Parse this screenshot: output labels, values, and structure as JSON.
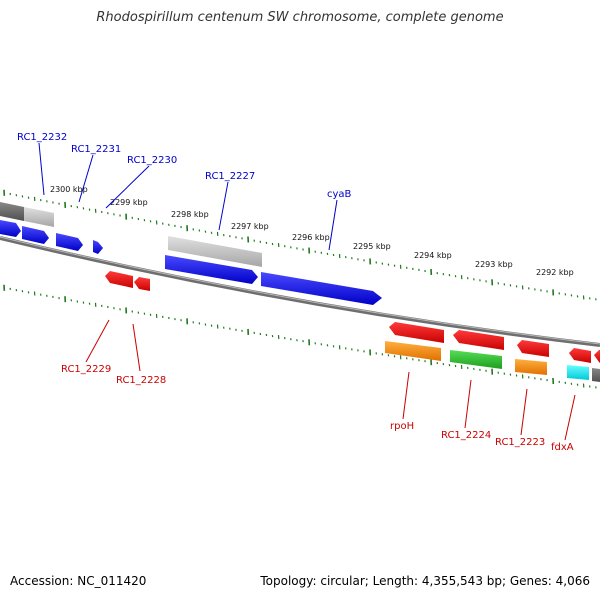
{
  "title": "Rhodospirillum centenum SW chromosome, complete genome",
  "accession": "Accession: NC_011420",
  "summary": "Topology: circular; Length: 4,355,543 bp; Genes: 4,066",
  "colors": {
    "forward_label": "#0000cc",
    "reverse_label": "#cc0000",
    "tick": "#1f7a1f",
    "backbone": "#808080"
  },
  "kbp_labels": [
    "2300 kbp",
    "2299 kbp",
    "2298 kbp",
    "2297 kbp",
    "2296 kbp",
    "2295 kbp",
    "2294 kbp",
    "2293 kbp",
    "2292 kbp"
  ],
  "forward_genes": [
    "RC1_2232",
    "RC1_2231",
    "RC1_2230",
    "RC1_2227",
    "cyaB"
  ],
  "reverse_genes": [
    "RC1_2229",
    "RC1_2228",
    "rpoH",
    "RC1_2224",
    "RC1_2223",
    "fdxA"
  ]
}
